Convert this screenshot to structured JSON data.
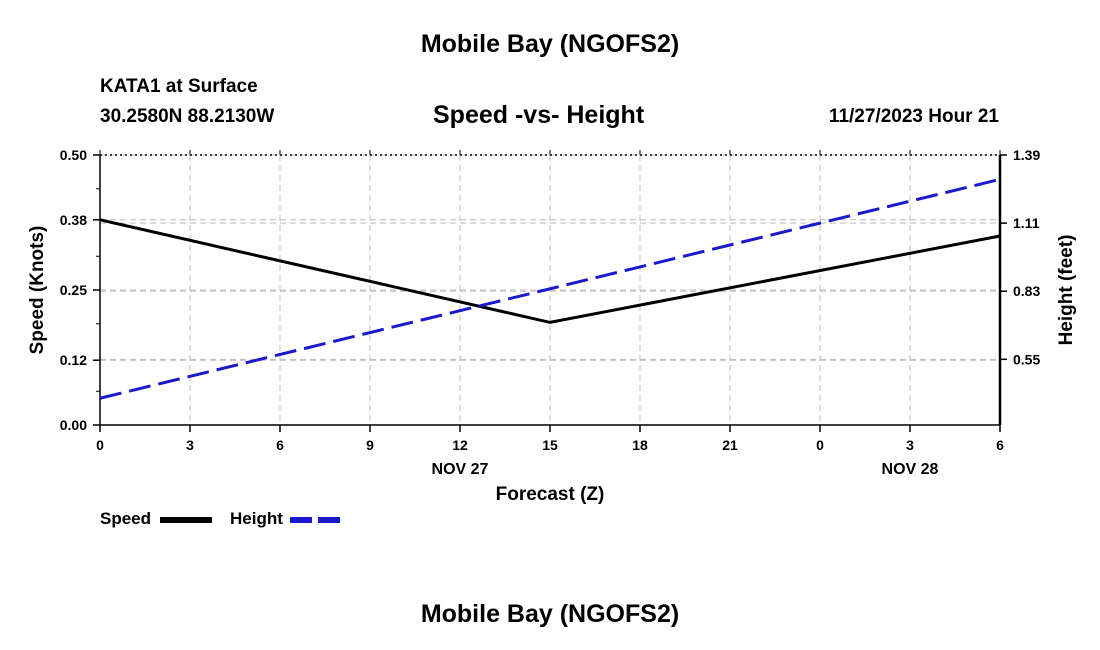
{
  "header": {
    "main_title": "Mobile Bay (NGOFS2)",
    "station": "KATA1 at Surface",
    "coords": "30.2580N  88.2130W",
    "subtitle": "Speed -vs- Height",
    "datetime": "11/27/2023 Hour 21"
  },
  "footer": {
    "title": "Mobile Bay (NGOFS2)"
  },
  "legend": {
    "speed_label": "Speed",
    "height_label": "Height"
  },
  "colors": {
    "speed": "#000000",
    "height": "#1a1acc",
    "grid": "#bdbdbd"
  },
  "chart_data": {
    "type": "line",
    "xlabel": "Forecast (Z)",
    "ylabel": "Speed (Knots)",
    "y2label": "Height (feet)",
    "x_ticks": [
      "0",
      "3",
      "6",
      "9",
      "12",
      "15",
      "18",
      "21",
      "0",
      "3",
      "6"
    ],
    "x_date_labels": [
      {
        "label": "NOV 27",
        "at_tick": 4
      },
      {
        "label": "NOV 28",
        "at_tick": 9
      }
    ],
    "ylim": [
      0,
      0.5
    ],
    "y_ticks": [
      "0.00",
      "0.12",
      "0.25",
      "0.38",
      "0.50"
    ],
    "y2lim": [
      0.28,
      1.39
    ],
    "y2_ticks": [
      "0.55",
      "0.83",
      "1.11",
      "1.39"
    ],
    "grid": true,
    "series": [
      {
        "name": "Speed",
        "axis": "left",
        "style": "solid",
        "x_tick_index": [
          0,
          5,
          10
        ],
        "values": [
          0.38,
          0.19,
          0.35
        ]
      },
      {
        "name": "Height",
        "axis": "right",
        "style": "dashed",
        "x_tick_index": [
          0,
          10
        ],
        "values": [
          0.39,
          1.29
        ]
      }
    ]
  }
}
